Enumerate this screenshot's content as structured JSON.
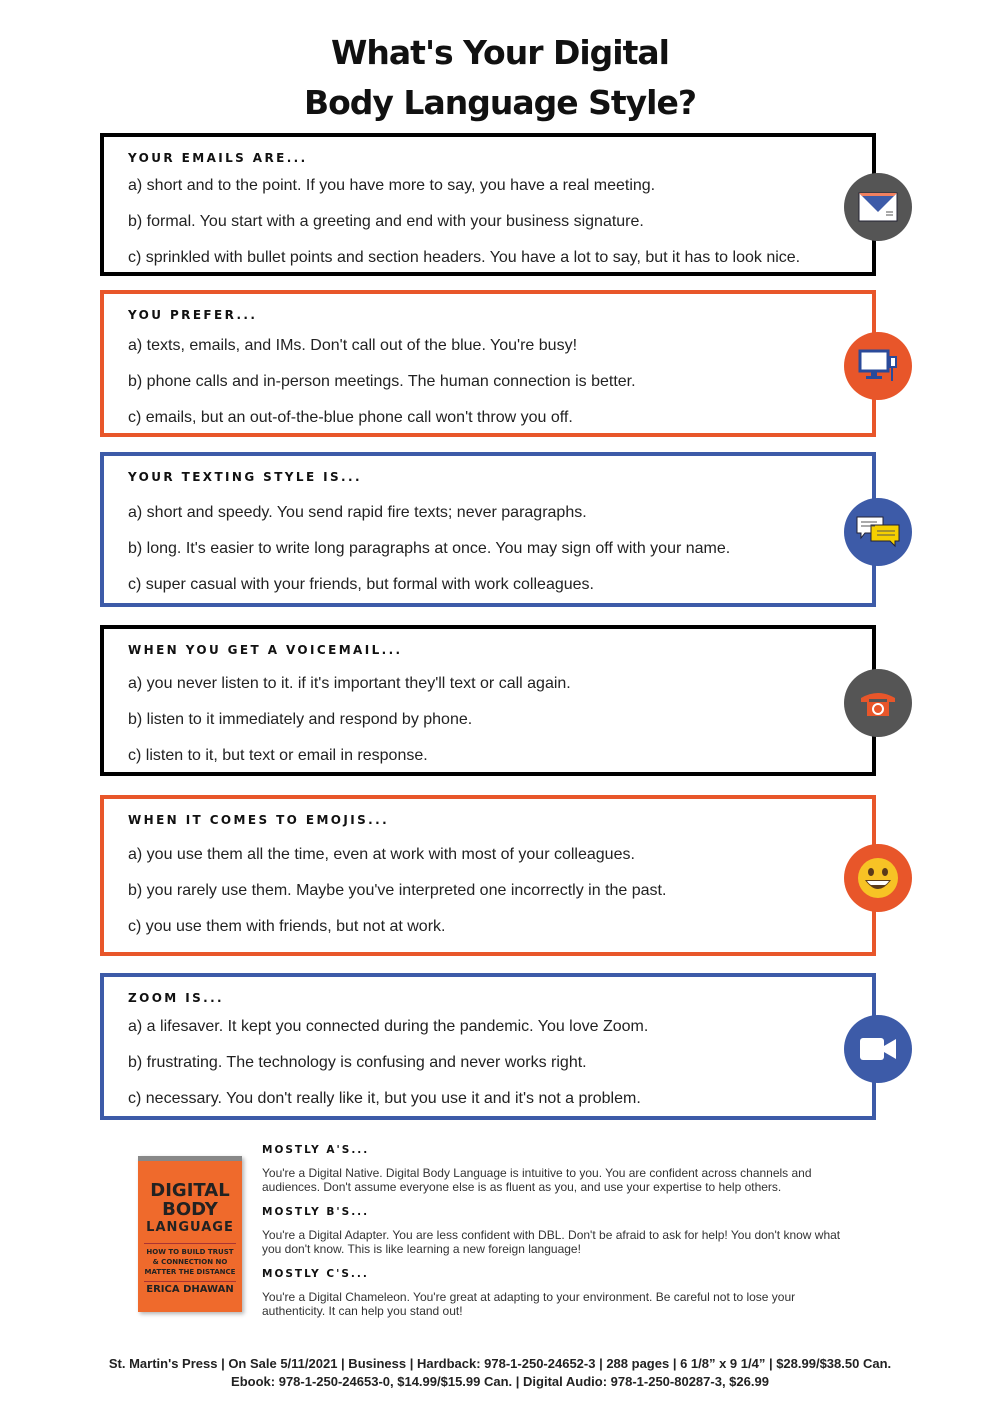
{
  "title": {
    "line1": "What's Your Digital",
    "line2": "Body Language Style?"
  },
  "colors": {
    "black": "#000000",
    "orange": "#e8562a",
    "blue": "#3d5ba8",
    "gray_icon": "#555555"
  },
  "questions": [
    {
      "heading": "YOUR EMAILS ARE...",
      "icon": "envelope-icon",
      "options": [
        "a) short and to the point. If you have more to say, you have a real meeting.",
        "b) formal. You start with a greeting and end with your business signature.",
        "c) sprinkled with bullet points and section headers. You have a lot to say, but it has to look nice."
      ]
    },
    {
      "heading": "YOU PREFER...",
      "icon": "computer-phone-icon",
      "options": [
        "a) texts, emails, and IMs. Don't call out of the blue. You're busy!",
        "b) phone calls and in-person meetings. The human connection is better.",
        "c) emails, but an out-of-the-blue phone call won't throw you off."
      ]
    },
    {
      "heading": "YOUR TEXTING STYLE IS...",
      "icon": "chat-bubbles-icon",
      "options": [
        "a) short and speedy. You send rapid fire texts; never paragraphs.",
        "b) long. It's easier to write long paragraphs at once. You may sign off with your name.",
        "c) super casual with your friends, but formal with work colleagues."
      ]
    },
    {
      "heading": "WHEN YOU GET A VOICEMAIL...",
      "icon": "telephone-icon",
      "options": [
        "a) you never listen to it. if it's important they'll text or call again.",
        "b) listen to it immediately and respond by phone.",
        "c) listen to it, but text or email in response."
      ]
    },
    {
      "heading": "WHEN IT COMES TO EMOJIS...",
      "icon": "smiley-icon",
      "options": [
        "a) you use them all the time, even at work with most of your colleagues.",
        "b) you rarely use them. Maybe you've interpreted one incorrectly in the past.",
        "c) you use them with friends, but not at work."
      ]
    },
    {
      "heading": "ZOOM IS...",
      "icon": "video-camera-icon",
      "options": [
        "a) a lifesaver. It kept you connected during the pandemic. You love Zoom.",
        "b) frustrating. The technology is confusing and never works right.",
        "c) necessary. You don't really like it, but you use it and it's not a problem."
      ]
    }
  ],
  "results": [
    {
      "heading": "MOSTLY A'S...",
      "text": "You're a Digital Native. Digital Body Language is intuitive to you. You are confident across channels and audiences. Don't assume everyone else is as fluent as you, and use your expertise to help others."
    },
    {
      "heading": "MOSTLY B'S...",
      "text": "You're a Digital Adapter. You are less confident with DBL. Don't be afraid to ask for help! You don't know what you don't know. This is like learning a new foreign language!"
    },
    {
      "heading": "MOSTLY C'S...",
      "text": "You're a Digital Chameleon. You're great at adapting to your environment. Be careful not to lose your authenticity. It can help you stand out!"
    }
  ],
  "book": {
    "title1": "DIGITAL",
    "title2": "BODY",
    "title3": "LANGUAGE",
    "subtitle": "HOW TO BUILD TRUST & CONNECTION NO MATTER THE DISTANCE",
    "author": "ERICA DHAWAN"
  },
  "footer": {
    "line1": "St. Martin's Press | On Sale 5/11/2021 | Business | Hardback: 978-1-250-24652-3 | 288 pages | 6 1/8” x 9 1/4” | $28.99/$38.50 Can.",
    "line2": "Ebook: 978-1-250-24653-0, $14.99/$15.99 Can. | Digital Audio: 978-1-250-80287-3, $26.99"
  }
}
